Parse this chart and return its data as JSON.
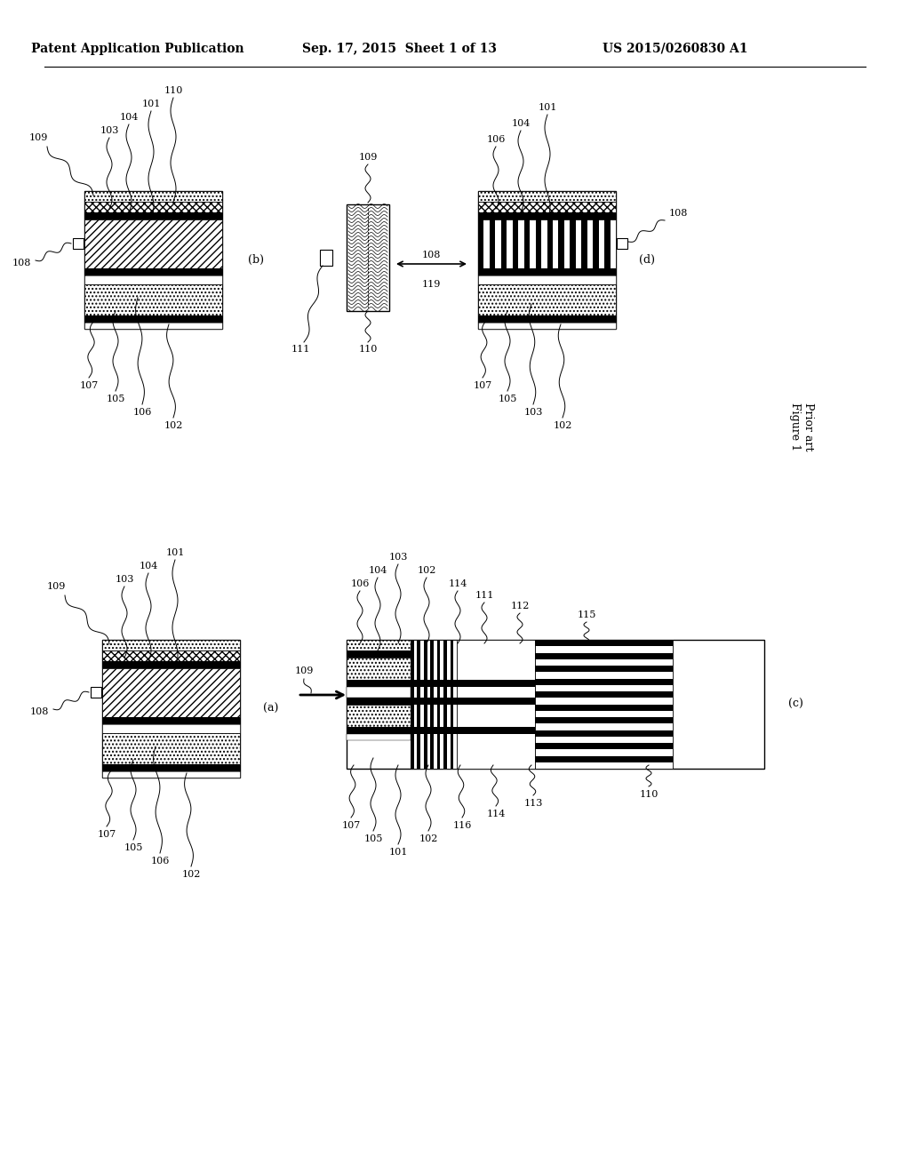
{
  "bg_color": "#ffffff",
  "header_left": "Patent Application Publication",
  "header_center": "Sep. 17, 2015  Sheet 1 of 13",
  "header_right": "US 2015/0260830 A1",
  "figure_label": "Figure 1",
  "figure_sublabel": "Prior art",
  "font_size_header": 10,
  "font_size_label": 8,
  "font_size_panel": 9
}
